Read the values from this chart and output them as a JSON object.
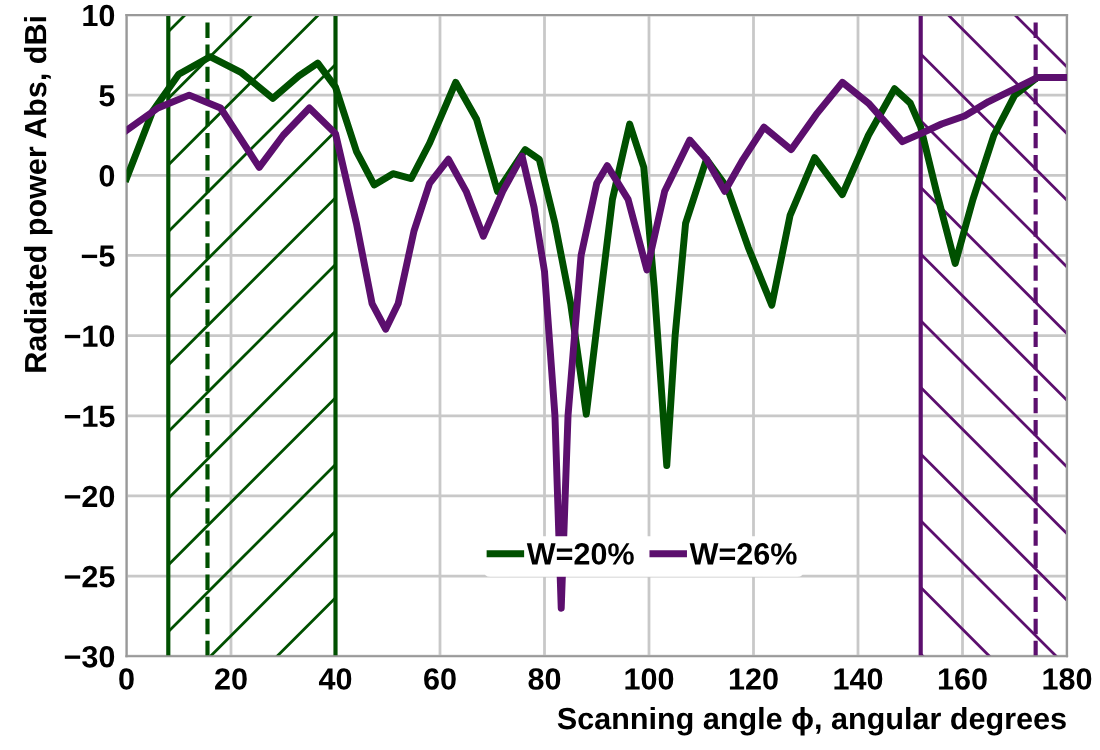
{
  "chart_data": {
    "type": "line",
    "xlabel": "Scanning angle ϕ, angular degrees",
    "ylabel": "Radiated power Abs, dBi",
    "xlim": [
      0,
      180
    ],
    "ylim": [
      -30,
      10
    ],
    "xticks": [
      0,
      20,
      40,
      60,
      80,
      100,
      120,
      140,
      160,
      180
    ],
    "yticks": [
      -30,
      -25,
      -20,
      -15,
      -10,
      -5,
      0,
      5,
      10
    ],
    "grid": true,
    "legend": "bottom",
    "marker": "none",
    "line_style": "solid",
    "series": [
      {
        "name": "W=20%",
        "color": "#005000",
        "x": [
          0,
          5,
          10,
          16,
          22,
          28,
          33,
          36.6,
          40,
          44,
          47.4,
          51,
          54.5,
          58,
          63,
          67,
          71,
          76.3,
          79,
          82,
          85,
          88,
          90,
          93,
          96.3,
          99,
          101,
          103.4,
          105,
          107,
          111,
          115,
          119,
          123.5,
          127,
          131.7,
          137,
          142,
          147,
          150,
          152,
          155,
          158.6,
          162,
          166,
          170,
          174.3,
          180
        ],
        "values": [
          -0.2,
          4.0,
          6.3,
          7.4,
          6.4,
          4.8,
          6.2,
          7.0,
          5.5,
          1.5,
          -0.6,
          0.1,
          -0.2,
          2.0,
          5.8,
          3.5,
          -1.0,
          1.6,
          1.0,
          -3.0,
          -8.0,
          -14.9,
          -9.5,
          -1.5,
          3.2,
          0.5,
          -7.0,
          -18.1,
          -10.0,
          -3.0,
          1.0,
          -0.8,
          -4.5,
          -8.1,
          -2.5,
          1.1,
          -1.2,
          2.5,
          5.4,
          4.5,
          3.0,
          -1.0,
          -5.5,
          -1.5,
          2.5,
          5.0,
          6.1,
          6.1
        ]
      },
      {
        "name": "W=26%",
        "color": "#5c0f6e",
        "x": [
          0,
          6,
          12,
          18,
          25.4,
          30,
          35,
          40,
          44,
          47,
          49.6,
          52,
          55,
          58,
          61.6,
          65,
          68.3,
          72,
          75.7,
          78,
          80,
          82,
          83.2,
          84.5,
          87,
          90,
          92,
          96,
          99.6,
          103,
          107.8,
          111,
          114.5,
          118,
          122,
          127.2,
          132,
          137,
          142,
          148.5,
          152,
          156,
          160.4,
          165,
          170,
          174.3,
          180
        ],
        "values": [
          2.8,
          4.2,
          5.0,
          4.2,
          0.5,
          2.5,
          4.2,
          2.6,
          -3.0,
          -8.0,
          -9.6,
          -8.0,
          -3.5,
          -0.5,
          1.0,
          -1.0,
          -3.8,
          -1.0,
          1.2,
          -2.0,
          -6.0,
          -15.0,
          -27.0,
          -15.0,
          -5.0,
          -0.5,
          0.6,
          -1.5,
          -5.9,
          -1.0,
          2.2,
          1.0,
          -1.0,
          1.0,
          3.0,
          1.6,
          3.8,
          5.8,
          4.5,
          2.1,
          2.6,
          3.2,
          3.7,
          4.6,
          5.4,
          6.1,
          6.1
        ]
      }
    ],
    "bands": [
      {
        "axis": "x",
        "from": 8,
        "to": 40,
        "color": "#005000"
      },
      {
        "axis": "x",
        "from": 152,
        "to": 180,
        "color": "#5c0f6e"
      }
    ],
    "ref_lines": [
      {
        "axis": "x",
        "value": 8,
        "color": "#005000",
        "line_style": "solid"
      },
      {
        "axis": "x",
        "value": 40,
        "color": "#005000",
        "line_style": "solid"
      },
      {
        "axis": "x",
        "value": 152,
        "color": "#5c0f6e",
        "line_style": "solid"
      },
      {
        "axis": "x",
        "value": 15.5,
        "color": "#005000",
        "line_style": "dashed"
      },
      {
        "axis": "x",
        "value": 174,
        "color": "#5c0f6e",
        "line_style": "dashed"
      }
    ]
  }
}
